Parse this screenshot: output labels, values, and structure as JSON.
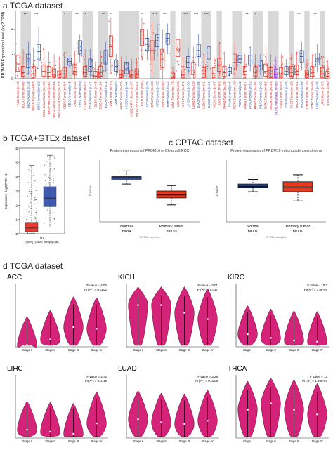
{
  "sections": {
    "a": "a TCGA dataset",
    "b": "b TCGA+GTEx dataset",
    "c": "c CPTAC dataset",
    "d": "d TCGA dataset"
  },
  "colors": {
    "tumor": "#e8281e",
    "normal": "#2c4aa8",
    "violin": "#d6237a",
    "cptac_normal": "#3a55a0",
    "cptac_tumor": "#e8381e",
    "shade": "#d8d8d8"
  },
  "chart_data": [
    {
      "id": "a",
      "type": "box",
      "ylabel": "PRDM16 Expression Level (log2 TPM)",
      "categories": [
        {
          "label": "ACC.Tumor.(n=79)",
          "kind": "tumor",
          "median": 1.2,
          "q1": 0.6,
          "q3": 1.9,
          "min": 0.1,
          "max": 3.2
        },
        {
          "label": "BLCA.Tumor.(n=408)",
          "kind": "tumor",
          "median": 0.5,
          "q1": 0.2,
          "q3": 1.0,
          "min": 0,
          "max": 2.4,
          "sig": "***",
          "shaded": true
        },
        {
          "label": "BLCA.Normal.(n=19)",
          "kind": "normal",
          "median": 1.5,
          "q1": 0.9,
          "q3": 2.0,
          "min": 0.3,
          "max": 3.0,
          "shaded": true
        },
        {
          "label": "BRCA.Tumor.(n=1093)",
          "kind": "tumor",
          "median": 0.4,
          "q1": 0.1,
          "q3": 1.0,
          "min": 0,
          "max": 2.5,
          "sig": "***"
        },
        {
          "label": "BRCA.Normal.(n=112)",
          "kind": "normal",
          "median": 2.2,
          "q1": 1.6,
          "q3": 2.8,
          "min": 0.8,
          "max": 4.2
        },
        {
          "label": "BRCA-Basal.Tumor.(n=190)",
          "kind": "tumor",
          "median": 0.6,
          "q1": 0.2,
          "q3": 1.1,
          "min": 0,
          "max": 2.6
        },
        {
          "label": "BRCA-Her2.Tumor.(n=82)",
          "kind": "tumor",
          "median": 0.5,
          "q1": 0.2,
          "q3": 1.0,
          "min": 0,
          "max": 2.2
        },
        {
          "label": "BRCA-LumA.Tumor.(n=564)",
          "kind": "tumor",
          "median": 0.3,
          "q1": 0.1,
          "q3": 0.8,
          "min": 0,
          "max": 2.0
        },
        {
          "label": "BRCA-LumB.Tumor.(n=217)",
          "kind": "tumor",
          "median": 0.3,
          "q1": 0.1,
          "q3": 0.7,
          "min": 0,
          "max": 1.8
        },
        {
          "label": "CESC.Tumor.(n=304)",
          "kind": "tumor",
          "median": 0.4,
          "q1": 0.1,
          "q3": 0.9,
          "min": 0,
          "max": 2.2,
          "sig": "*",
          "shaded": true
        },
        {
          "label": "CESC.Normal.(n=3)",
          "kind": "normal",
          "median": 1.4,
          "q1": 1.1,
          "q3": 1.7,
          "min": 0.9,
          "max": 1.9,
          "shaded": true
        },
        {
          "label": "CHOL.Tumor.(n=36)",
          "kind": "tumor",
          "median": 0.6,
          "q1": 0.3,
          "q3": 1.2,
          "min": 0,
          "max": 2.3,
          "sig": "***"
        },
        {
          "label": "CHOL.Normal.(n=9)",
          "kind": "normal",
          "median": 2.5,
          "q1": 2.0,
          "q3": 3.1,
          "min": 1.3,
          "max": 3.6
        },
        {
          "label": "COAD.Tumor.(n=457)",
          "kind": "tumor",
          "median": 0.5,
          "q1": 0.2,
          "q3": 1.0,
          "min": 0,
          "max": 2.4,
          "sig": "*",
          "shaded": true
        },
        {
          "label": "COAD.Normal.(n=41)",
          "kind": "normal",
          "median": 1.0,
          "q1": 0.6,
          "q3": 1.6,
          "min": 0.1,
          "max": 2.4,
          "shaded": true
        },
        {
          "label": "DLBC.Tumor.(n=48)",
          "kind": "tumor",
          "median": 0.2,
          "q1": 0.0,
          "q3": 0.6,
          "min": 0,
          "max": 1.4
        },
        {
          "label": "ESCA.Tumor.(n=184)",
          "kind": "tumor",
          "median": 0.5,
          "q1": 0.2,
          "q3": 1.0,
          "min": 0,
          "max": 2.3,
          "sig": "**",
          "shaded": true
        },
        {
          "label": "ESCA.Normal.(n=11)",
          "kind": "normal",
          "median": 1.7,
          "q1": 1.2,
          "q3": 2.3,
          "min": 0.6,
          "max": 3.0,
          "shaded": true
        },
        {
          "label": "GBM.Tumor.(n=153)",
          "kind": "tumor",
          "median": 2.6,
          "q1": 1.8,
          "q3": 3.5,
          "min": 0.4,
          "max": 5.0,
          "sig": "*"
        },
        {
          "label": "GBM.Normal.(n=5)",
          "kind": "normal",
          "median": 1.0,
          "q1": 0.6,
          "q3": 1.5,
          "min": 0.2,
          "max": 2.0
        },
        {
          "label": "HNSC.Tumor.(n=520)",
          "kind": "tumor",
          "median": 0.3,
          "q1": 0.1,
          "q3": 0.7,
          "min": 0,
          "max": 1.8,
          "shaded": true
        },
        {
          "label": "HNSC.Normal.(n=44)",
          "kind": "normal",
          "median": 0.8,
          "q1": 0.4,
          "q3": 1.3,
          "min": 0.1,
          "max": 2.0,
          "shaded": true
        },
        {
          "label": "HNSC-HPV+.Tumor.(n=97)",
          "kind": "tumor",
          "median": 0.3,
          "q1": 0.1,
          "q3": 0.7,
          "min": 0,
          "max": 1.6,
          "shaded": true
        },
        {
          "label": "HNSC-HPV-.Tumor.(n=421)",
          "kind": "tumor",
          "median": 0.3,
          "q1": 0.1,
          "q3": 0.8,
          "min": 0,
          "max": 1.7,
          "shaded": true
        },
        {
          "label": "KICH.Tumor.(n=66)",
          "kind": "tumor",
          "median": 3.4,
          "q1": 2.7,
          "q3": 4.0,
          "min": 1.5,
          "max": 5.0,
          "sig": "*"
        },
        {
          "label": "KICH.Normal.(n=25)",
          "kind": "normal",
          "median": 2.8,
          "q1": 2.3,
          "q3": 3.3,
          "min": 1.5,
          "max": 4.0
        },
        {
          "label": "KIRC.Tumor.(n=533)",
          "kind": "tumor",
          "median": 2.3,
          "q1": 1.5,
          "q3": 3.1,
          "min": 0.2,
          "max": 4.6,
          "sig": "***",
          "shaded": true
        },
        {
          "label": "KIRC.Normal.(n=72)",
          "kind": "normal",
          "median": 3.1,
          "q1": 2.6,
          "q3": 3.6,
          "min": 1.8,
          "max": 4.5,
          "shaded": true
        },
        {
          "label": "KIRP.Tumor.(n=290)",
          "kind": "tumor",
          "median": 1.6,
          "q1": 0.9,
          "q3": 2.4,
          "min": 0,
          "max": 4.0,
          "sig": "***"
        },
        {
          "label": "KIRP.Normal.(n=32)",
          "kind": "normal",
          "median": 3.3,
          "q1": 2.8,
          "q3": 3.7,
          "min": 2.0,
          "max": 4.5
        },
        {
          "label": "LAML.Tumor.(n=173)",
          "kind": "tumor",
          "median": 0.1,
          "q1": 0.0,
          "q3": 0.4,
          "min": 0,
          "max": 1.0,
          "shaded": true
        },
        {
          "label": "LGG.Tumor.(n=516)",
          "kind": "tumor",
          "median": 2.4,
          "q1": 1.8,
          "q3": 3.2,
          "min": 0.6,
          "max": 4.5
        },
        {
          "label": "LIHC.Tumor.(n=371)",
          "kind": "tumor",
          "median": 0.3,
          "q1": 0.1,
          "q3": 0.7,
          "min": 0,
          "max": 1.8,
          "sig": "***",
          "shaded": true
        },
        {
          "label": "LIHC.Normal.(n=50)",
          "kind": "normal",
          "median": 1.3,
          "q1": 0.9,
          "q3": 1.8,
          "min": 0.3,
          "max": 2.5,
          "shaded": true
        },
        {
          "label": "LUAD.Tumor.(n=515)",
          "kind": "tumor",
          "median": 0.7,
          "q1": 0.3,
          "q3": 1.3,
          "min": 0,
          "max": 2.6,
          "sig": "***"
        },
        {
          "label": "LUAD.Normal.(n=59)",
          "kind": "normal",
          "median": 2.3,
          "q1": 1.8,
          "q3": 2.8,
          "min": 1.0,
          "max": 3.6
        },
        {
          "label": "LUSC.Tumor.(n=501)",
          "kind": "tumor",
          "median": 0.4,
          "q1": 0.1,
          "q3": 0.9,
          "min": 0,
          "max": 2.0,
          "sig": "***",
          "shaded": true
        },
        {
          "label": "LUSC.Normal.(n=51)",
          "kind": "normal",
          "median": 2.1,
          "q1": 1.6,
          "q3": 2.6,
          "min": 0.8,
          "max": 3.4,
          "shaded": true
        },
        {
          "label": "MESO.Tumor.(n=87)",
          "kind": "tumor",
          "median": 0.4,
          "q1": 0.1,
          "q3": 0.9,
          "min": 0,
          "max": 1.8
        },
        {
          "label": "OV.Tumor.(n=303)",
          "kind": "tumor",
          "median": 1.1,
          "q1": 0.6,
          "q3": 1.7,
          "min": 0,
          "max": 3.0,
          "shaded": true
        },
        {
          "label": "PAAD.Tumor.(n=178)",
          "kind": "tumor",
          "median": 0.5,
          "q1": 0.2,
          "q3": 1.0,
          "min": 0,
          "max": 2.2
        },
        {
          "label": "PAAD.Normal.(n=4)",
          "kind": "normal",
          "median": 0.6,
          "q1": 0.4,
          "q3": 0.9,
          "min": 0.2,
          "max": 1.2
        },
        {
          "label": "PCPG.Tumor.(n=179)",
          "kind": "tumor",
          "median": 1.3,
          "q1": 0.7,
          "q3": 2.0,
          "min": 0,
          "max": 3.0,
          "shaded": true
        },
        {
          "label": "PCPG.Normal.(n=3)",
          "kind": "normal",
          "median": 1.6,
          "q1": 1.3,
          "q3": 1.9,
          "min": 1.0,
          "max": 2.2,
          "shaded": true
        },
        {
          "label": "PRAD.Tumor.(n=497)",
          "kind": "tumor",
          "median": 0.6,
          "q1": 0.3,
          "q3": 1.0,
          "min": 0,
          "max": 2.0,
          "sig": "***"
        },
        {
          "label": "PRAD.Normal.(n=52)",
          "kind": "normal",
          "median": 1.5,
          "q1": 1.1,
          "q3": 1.9,
          "min": 0.6,
          "max": 2.6
        },
        {
          "label": "READ.Tumor.(n=166)",
          "kind": "tumor",
          "median": 0.5,
          "q1": 0.2,
          "q3": 1.0,
          "min": 0,
          "max": 2.0,
          "sig": "*",
          "shaded": true
        },
        {
          "label": "READ.Normal.(n=10)",
          "kind": "normal",
          "median": 1.1,
          "q1": 0.7,
          "q3": 1.5,
          "min": 0.3,
          "max": 2.0,
          "shaded": true
        },
        {
          "label": "SARC.Tumor.(n=260)",
          "kind": "tumor",
          "median": 0.6,
          "q1": 0.2,
          "q3": 1.2,
          "min": 0,
          "max": 2.6
        },
        {
          "label": "SKCM.Tumor.(n=103)",
          "kind": "tumor",
          "median": 0.4,
          "q1": 0.1,
          "q3": 0.9,
          "min": 0,
          "max": 2.0,
          "shaded": true
        },
        {
          "label": "SKCM.Metastasis.(n=368)",
          "kind": "metastasis",
          "median": 0.3,
          "q1": 0.1,
          "q3": 0.8,
          "min": 0,
          "max": 1.8,
          "shaded": true
        },
        {
          "label": "STAD.Tumor.(n=415)",
          "kind": "tumor",
          "median": 0.4,
          "q1": 0.1,
          "q3": 0.9,
          "min": 0,
          "max": 2.0
        },
        {
          "label": "STAD.Normal.(n=35)",
          "kind": "normal",
          "median": 0.6,
          "q1": 0.3,
          "q3": 1.0,
          "min": 0.1,
          "max": 1.6
        },
        {
          "label": "TGCT.Tumor.(n=150)",
          "kind": "tumor",
          "median": 0.5,
          "q1": 0.2,
          "q3": 1.0,
          "min": 0,
          "max": 2.0,
          "shaded": true
        },
        {
          "label": "THCA.Tumor.(n=501)",
          "kind": "tumor",
          "median": 0.6,
          "q1": 0.3,
          "q3": 1.1,
          "min": 0,
          "max": 2.2,
          "sig": "***"
        },
        {
          "label": "THCA.Normal.(n=59)",
          "kind": "normal",
          "median": 1.8,
          "q1": 1.3,
          "q3": 2.3,
          "min": 0.7,
          "max": 3.0
        },
        {
          "label": "THYM.Tumor.(n=120)",
          "kind": "tumor",
          "median": 0.3,
          "q1": 0.1,
          "q3": 0.7,
          "min": 0,
          "max": 1.6,
          "shaded": true
        },
        {
          "label": "UCEC.Tumor.(n=545)",
          "kind": "tumor",
          "median": 0.5,
          "q1": 0.2,
          "q3": 1.0,
          "min": 0,
          "max": 2.0,
          "sig": "***"
        },
        {
          "label": "UCEC.Normal.(n=35)",
          "kind": "normal",
          "median": 1.6,
          "q1": 1.1,
          "q3": 2.1,
          "min": 0.5,
          "max": 2.8
        },
        {
          "label": "UCS.Tumor.(n=57)",
          "kind": "tumor",
          "median": 0.4,
          "q1": 0.1,
          "q3": 0.9,
          "min": 0,
          "max": 1.8,
          "shaded": true
        },
        {
          "label": "UVM.Tumor.(n=80)",
          "kind": "tumor",
          "median": 0.2,
          "q1": 0.0,
          "q3": 0.6,
          "min": 0,
          "max": 1.5
        }
      ]
    },
    {
      "id": "b",
      "type": "box",
      "ylabel": "Expression – log2(TPM + 1)",
      "category": "OV",
      "count_label": "(num(T)=426; num(N)=88)",
      "ylim": [
        0,
        6
      ],
      "yticks": [
        0,
        1,
        2,
        3,
        4,
        5,
        6
      ],
      "boxes": [
        {
          "group": "T",
          "median": 0.4,
          "q1": 0.15,
          "q3": 0.8,
          "min": 0,
          "max": 4.8
        },
        {
          "group": "N",
          "median": 2.5,
          "q1": 1.9,
          "q3": 3.3,
          "min": 0.5,
          "max": 5.5
        }
      ]
    },
    {
      "id": "c1",
      "type": "box",
      "title": "Protein expression of PRDM16 in Clear cell RCC",
      "ylabel": "Z-value",
      "xlabel": "CPTAC samples",
      "ylim": [
        -2,
        2
      ],
      "boxes": [
        {
          "group": "Normal",
          "n_label": "n=84",
          "median": 0.85,
          "q1": 0.7,
          "q3": 0.95,
          "min": 0.45,
          "max": 1.3
        },
        {
          "group": "Primary tumor",
          "n_label": "n=110",
          "median": -0.25,
          "q1": -0.45,
          "q3": 0.0,
          "min": -0.9,
          "max": 0.35
        }
      ]
    },
    {
      "id": "c2",
      "type": "box",
      "title": "Protein expression of PRDM16 in Lung adenocarcinoma",
      "ylabel": "Z-value",
      "xlabel": "CPTAC samples",
      "ylim": [
        -2,
        2
      ],
      "boxes": [
        {
          "group": "Normal",
          "n_label": "n=111",
          "median": 0.3,
          "q1": 0.2,
          "q3": 0.45,
          "min": -0.05,
          "max": 0.75
        },
        {
          "group": "Primary tumor",
          "n_label": "n=111",
          "median": 0.25,
          "q1": -0.05,
          "q3": 0.6,
          "min": -0.65,
          "max": 1.05
        }
      ]
    },
    {
      "id": "d",
      "type": "violin",
      "stages": [
        "Stage I",
        "Stage II",
        "Stage III",
        "Stage IV"
      ],
      "panels": [
        {
          "name": "ACC",
          "stat1": "F value = 4.06",
          "stat2": "Pr(>F) = 0.0102",
          "ymax": 3.5,
          "medians": [
            0.1,
            0.4,
            1.1,
            1.0
          ]
        },
        {
          "name": "KICH",
          "stat1": "F value = 3.01",
          "stat2": "Pr(>F) = 0.037",
          "ymax": 5.0,
          "medians": [
            3.3,
            3.3,
            2.7,
            2.2
          ]
        },
        {
          "name": "KIRC",
          "stat1": "F value = 10.7",
          "stat2": "Pr(>F) = 7.8e-07",
          "ymax": 5.0,
          "medians": [
            1.0,
            0.7,
            0.5,
            0.4
          ]
        },
        {
          "name": "LIHC",
          "stat1": "F value = 3.72",
          "stat2": "Pr(>F) = 0.0118",
          "ymax": 3.0,
          "medians": [
            0.4,
            0.3,
            0.2,
            0.7
          ]
        },
        {
          "name": "LUAD",
          "stat1": "F value = 3.28",
          "stat2": "Pr(>F) = 0.0209",
          "ymax": 4.0,
          "medians": [
            1.2,
            1.0,
            0.9,
            1.1
          ]
        },
        {
          "name": "THCA",
          "stat1": "F value = 12",
          "stat2": "Pr(>F) = 1.28e-07",
          "ymax": 4.0,
          "medians": [
            1.8,
            2.2,
            1.8,
            1.5
          ]
        }
      ]
    }
  ]
}
